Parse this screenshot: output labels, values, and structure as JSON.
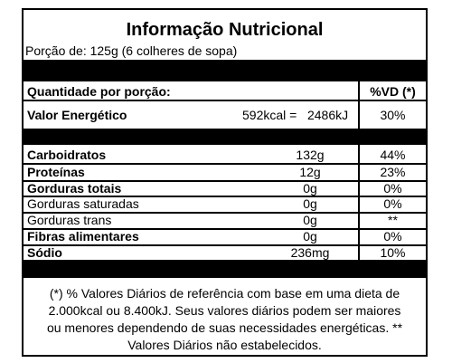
{
  "title": "Informação Nutricional",
  "portion": "Porção de: 125g (6 colheres de sopa)",
  "header": {
    "quantity": "Quantidade por porção:",
    "vd": "%VD (*)"
  },
  "energy": {
    "label": "Valor Energético",
    "value": "592kcal =   2486kJ",
    "vd": "30%"
  },
  "rows": [
    {
      "label": "Carboidratos",
      "value": "132g",
      "vd": "44%"
    },
    {
      "label": "Proteínas",
      "value": "12g",
      "vd": "23%"
    },
    {
      "label": "Gorduras totais",
      "value": "0g",
      "vd": "0%"
    },
    {
      "label": "Gorduras saturadas",
      "value": "0g",
      "vd": "0%"
    },
    {
      "label": "Gorduras trans",
      "value": "0g",
      "vd": "**"
    },
    {
      "label": "Fibras alimentares",
      "value": "0g",
      "vd": "0%"
    },
    {
      "label": "Sódio",
      "value": "236mg",
      "vd": "10%"
    }
  ],
  "footnote": "(*) % Valores Diários de referência com base em uma dieta de 2.000kcal ou 8.400kJ. Seus valores diários podem ser maiores ou menores dependendo de suas necessidades energéticas. ** Valores Diários não estabelecidos."
}
